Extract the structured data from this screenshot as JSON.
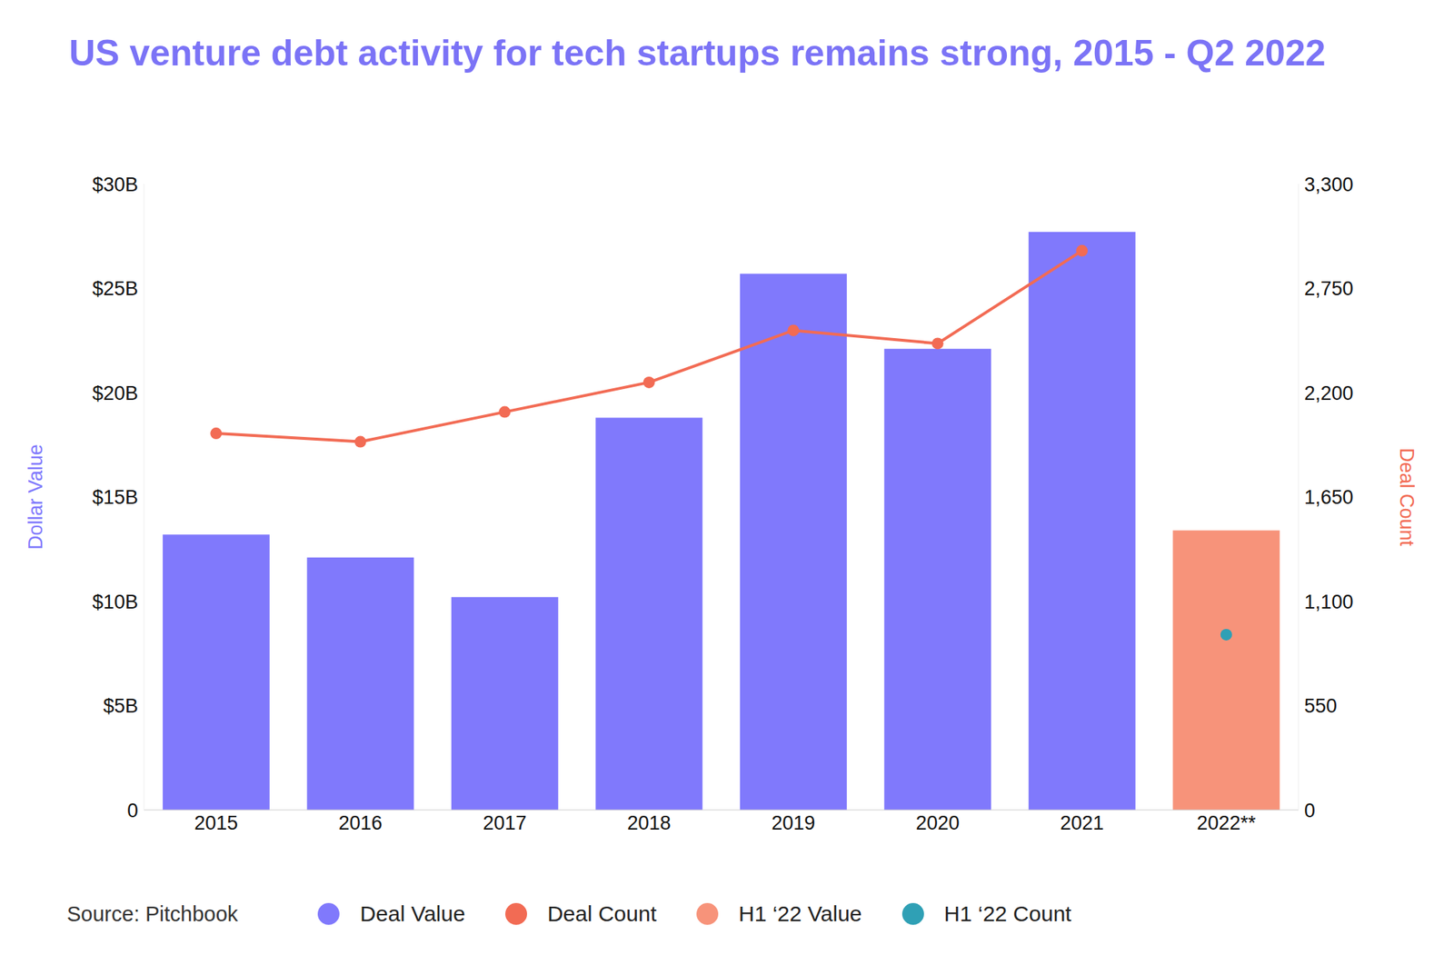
{
  "chart_data": {
    "type": "bar",
    "title": "US venture debt activity for tech startups remains strong, 2015 - Q2 2022",
    "source": "Source: Pitchbook",
    "categories": [
      "2015",
      "2016",
      "2017",
      "2018",
      "2019",
      "2020",
      "2021",
      "2022**"
    ],
    "series": [
      {
        "name": "Deal Value",
        "type": "bar",
        "color": "#8079fc",
        "values": [
          13.2,
          12.1,
          10.2,
          18.8,
          25.7,
          22.1,
          27.7,
          null
        ]
      },
      {
        "name": "Deal Count",
        "type": "line",
        "axis": "y2",
        "color": "#f26b54",
        "marker": "circle",
        "values": [
          1985,
          1941,
          2098,
          2254,
          2528,
          2459,
          2948,
          null
        ]
      },
      {
        "name": "H1 ‘22 Value",
        "type": "bar",
        "color": "#f7937a",
        "values": [
          null,
          null,
          null,
          null,
          null,
          null,
          null,
          13.4
        ]
      },
      {
        "name": "H1 ‘22 Count",
        "type": "scatter",
        "axis": "y2",
        "color": "#2fa0b5",
        "marker": "circle",
        "values": [
          null,
          null,
          null,
          null,
          null,
          null,
          null,
          924
        ]
      }
    ],
    "y_label": "Dollar Value",
    "y2_label": "Deal Count",
    "ylim": [
      0,
      30
    ],
    "yticks": [
      0,
      {
        "value": 5,
        "label": "$5B"
      },
      {
        "value": 10,
        "label": "$10B"
      },
      {
        "value": 15,
        "label": "$15B"
      },
      {
        "value": 20,
        "label": "$20B"
      },
      {
        "value": 25,
        "label": "$25B"
      },
      {
        "value": 30,
        "label": "$30B"
      }
    ],
    "y2lim": [
      0,
      3300
    ],
    "y2ticks": [
      0,
      550,
      {
        "value": 1100,
        "label": "1,100"
      },
      {
        "value": 1650,
        "label": "1,650"
      },
      {
        "value": 2200,
        "label": "2,200"
      },
      {
        "value": 2750,
        "label": "2,750"
      },
      {
        "value": 3300,
        "label": "3,300"
      }
    ],
    "legend": "bottom",
    "grid": false
  }
}
